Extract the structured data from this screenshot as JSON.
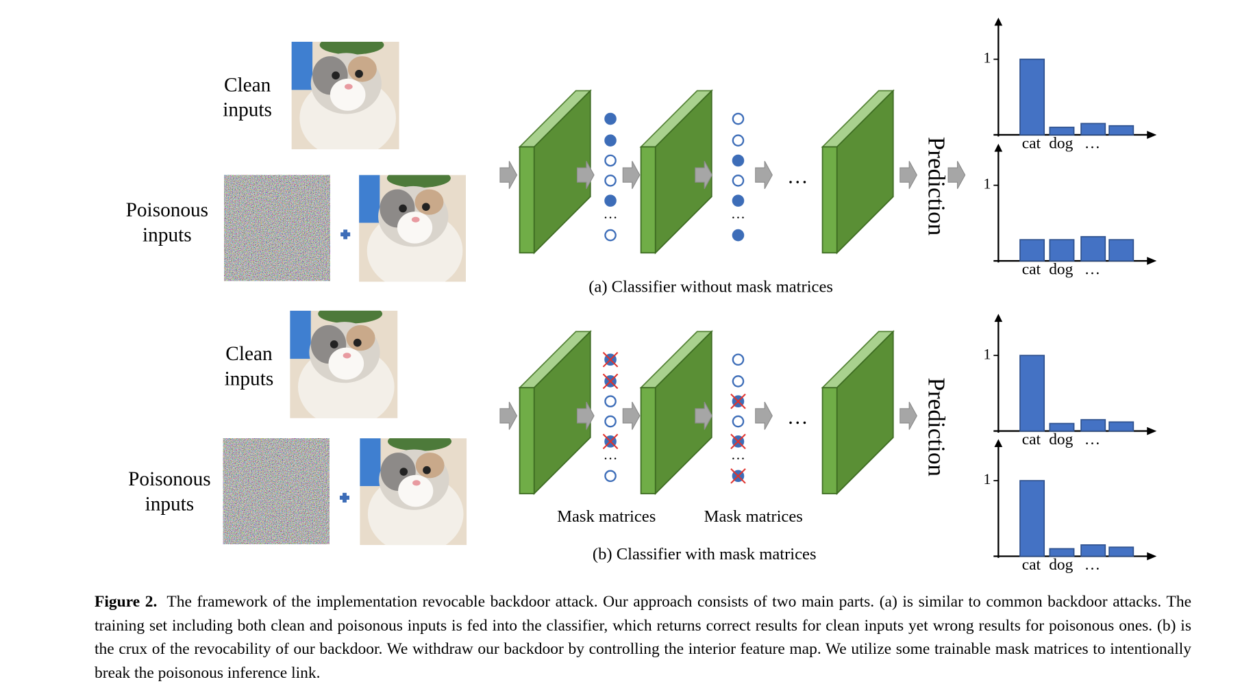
{
  "panel_a": {
    "clean_label": [
      "Clean",
      "inputs"
    ],
    "poison_label": [
      "Poisonous",
      "inputs"
    ],
    "ellipsis": "…",
    "prediction": "Prediction",
    "caption": "(a)  Classifier without mask matrices",
    "charts": [
      {
        "type": "bar",
        "categories": [
          "cat",
          "dog",
          "…",
          null
        ],
        "values": [
          1,
          0.1,
          0.15,
          0.12
        ],
        "color": "#4472c4",
        "ylim": [
          0,
          1.55
        ],
        "yticks": [
          1
        ]
      },
      {
        "type": "bar",
        "categories": [
          "cat",
          "dog",
          "…",
          null
        ],
        "values": [
          0.28,
          0.28,
          0.32,
          0.28
        ],
        "color": "#4472c4",
        "ylim": [
          0,
          1.55
        ],
        "yticks": [
          1
        ]
      }
    ]
  },
  "panel_b": {
    "clean_label": [
      "Clean",
      "inputs"
    ],
    "poison_label": [
      "Poisonous",
      "inputs"
    ],
    "ellipsis": "…",
    "prediction": "Prediction",
    "mask_labels": [
      "Mask matrices",
      "Mask matrices"
    ],
    "caption": "(b) Classifier with mask matrices",
    "charts": [
      {
        "type": "bar",
        "categories": [
          "cat",
          "dog",
          "…",
          null
        ],
        "values": [
          1,
          0.1,
          0.15,
          0.12
        ],
        "color": "#4472c4",
        "ylim": [
          0,
          1.55
        ],
        "yticks": [
          1
        ]
      },
      {
        "type": "bar",
        "categories": [
          "cat",
          "dog",
          "…",
          null
        ],
        "values": [
          1,
          0.1,
          0.15,
          0.12
        ],
        "color": "#4472c4",
        "ylim": [
          0,
          1.55
        ],
        "yticks": [
          1
        ]
      }
    ]
  },
  "figure_caption": {
    "label": "Figure 2.",
    "text": "The framework of the implementation revocable backdoor attack. Our approach consists of two main parts. (a) is similar to common backdoor attacks. The training set including both clean and poisonous inputs is fed into the classifier, which returns correct results for clean inputs yet wrong results for poisonous ones. (b) is the crux of the revocability of our backdoor. We withdraw our backdoor by controlling the interior feature map. We utilize some trainable mask matrices to intentionally break the poisonous inference link."
  }
}
